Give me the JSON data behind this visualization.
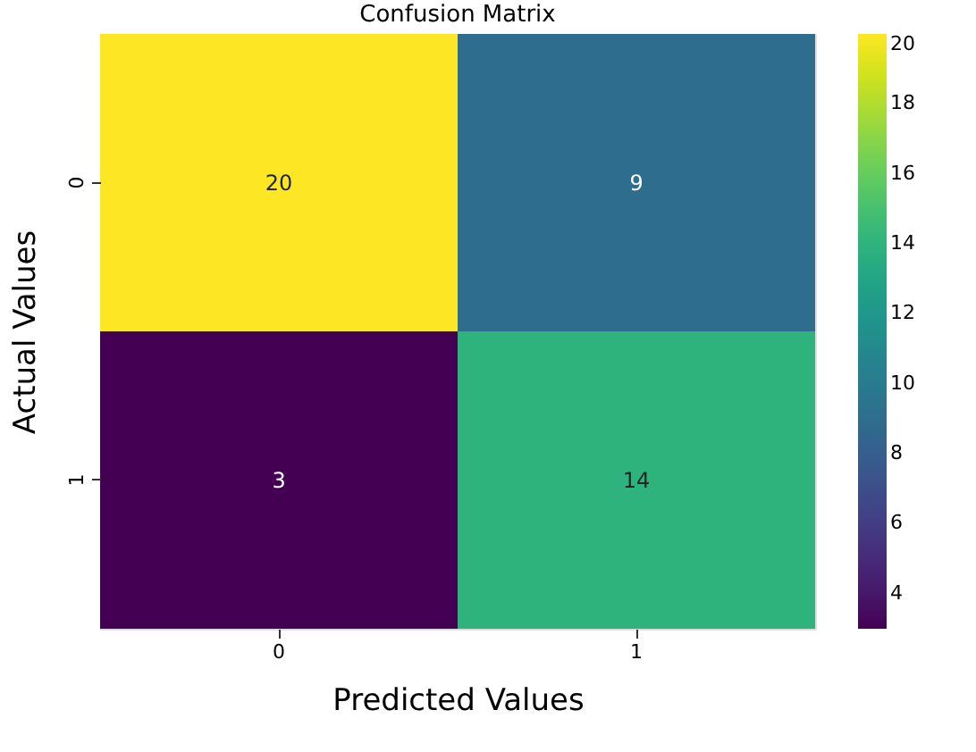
{
  "chart_data": {
    "type": "heatmap",
    "title": "Confusion Matrix",
    "xlabel": "Predicted Values",
    "ylabel": "Actual Values",
    "categories": [
      "0",
      "1"
    ],
    "y_categories": [
      "0",
      "1"
    ],
    "cells": [
      [
        20,
        9
      ],
      [
        3,
        14
      ]
    ],
    "clim": [
      3,
      20
    ],
    "cticks": [
      4,
      6,
      8,
      10,
      12,
      14,
      16,
      18,
      20
    ],
    "data_labels": true,
    "grid": false
  }
}
